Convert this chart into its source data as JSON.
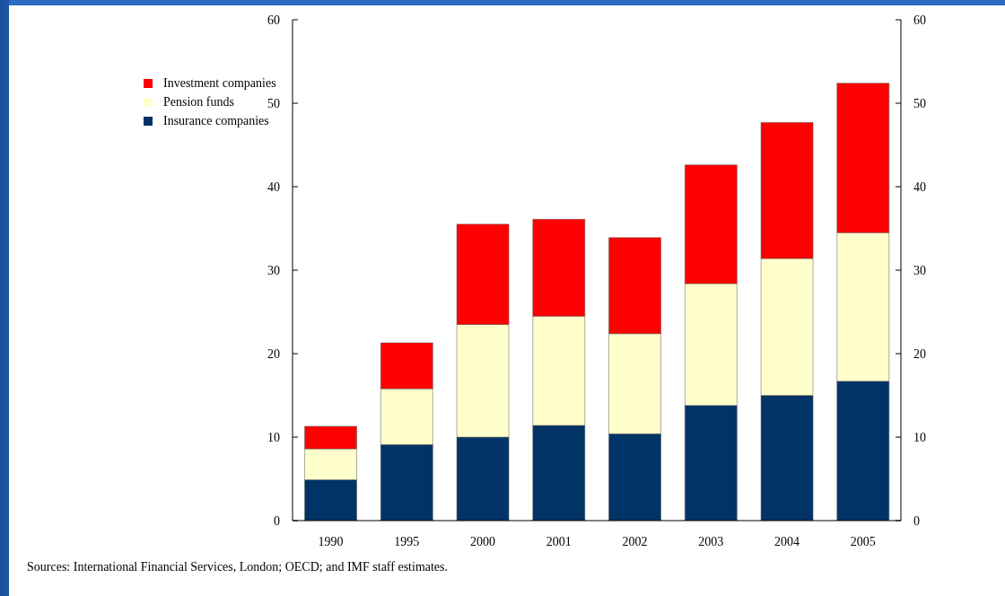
{
  "chart_data": {
    "type": "bar",
    "stacked": true,
    "categories": [
      "1990",
      "1995",
      "2000",
      "2001",
      "2002",
      "2003",
      "2004",
      "2005"
    ],
    "series": [
      {
        "name": "Insurance companies",
        "color": "#003366",
        "values": [
          4.9,
          9.1,
          10.0,
          11.4,
          10.4,
          13.8,
          15.0,
          16.7
        ]
      },
      {
        "name": "Pension funds",
        "color": "#ffffcc",
        "values": [
          3.7,
          6.7,
          13.5,
          13.1,
          12.0,
          14.6,
          16.4,
          17.8
        ]
      },
      {
        "name": "Investment companies",
        "color": "#ff0000",
        "values": [
          2.7,
          5.5,
          12.0,
          11.6,
          11.5,
          14.2,
          16.3,
          17.9
        ]
      }
    ],
    "ylim": [
      0,
      60
    ],
    "yticks": [
      0,
      10,
      20,
      30,
      40,
      50,
      60
    ],
    "y2lim": [
      0,
      60
    ],
    "y2ticks": [
      0,
      10,
      20,
      30,
      40,
      50,
      60
    ],
    "grid": false,
    "legend": "top left",
    "annotations": [
      "Sources: International Financial Services, London; OECD; and IMF staff estimates."
    ]
  }
}
